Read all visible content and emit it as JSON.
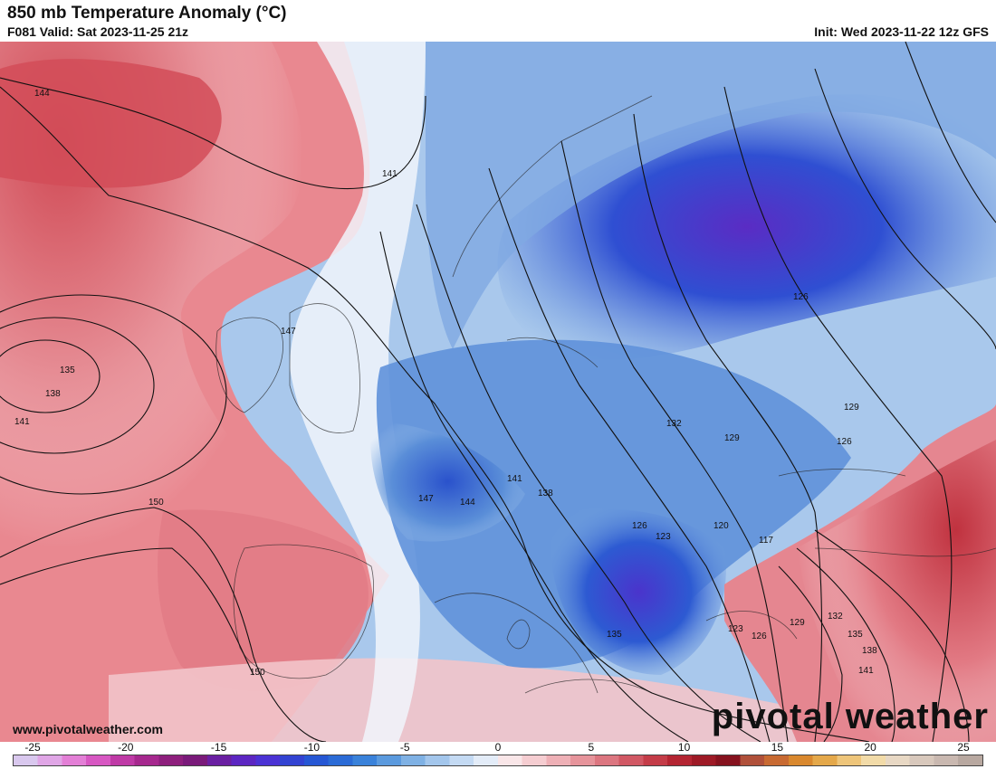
{
  "title": "850 mb Temperature Anomaly (°C)",
  "valid": "F081 Valid: Sat 2023-11-25 21z",
  "init": "Init: Wed 2023-11-22 12z GFS",
  "website": "www.pivotalweather.com",
  "brand": "pivotal weather",
  "colorbar": {
    "ticks": [
      "-25",
      "-20",
      "-15",
      "-10",
      "-5",
      "0",
      "5",
      "10",
      "15",
      "20",
      "25"
    ],
    "colors": [
      "#d9c8ee",
      "#e0a6e6",
      "#e37fd6",
      "#d757c2",
      "#bf3aa6",
      "#a6288e",
      "#8e1f7d",
      "#7a1a7a",
      "#6a1fa2",
      "#5c26c2",
      "#4b32d4",
      "#3343d2",
      "#2657d4",
      "#2b6bd6",
      "#3a82da",
      "#5b9ade",
      "#7fb1e4",
      "#a3c6ec",
      "#c4daf3",
      "#e3ecf8",
      "#f9e6e8",
      "#f5cdd1",
      "#eeb0b6",
      "#e6949b",
      "#dc7680",
      "#d15864",
      "#c43c48",
      "#b42532",
      "#9e1a26",
      "#86121e",
      "#b0503a",
      "#c86a32",
      "#d9882e",
      "#e4a84a",
      "#eec57a",
      "#f2dba8",
      "#e8d8c4",
      "#d8c8bc",
      "#c9b8b0",
      "#b8a8a0"
    ]
  },
  "contour_labels": [
    {
      "text": "144"
    },
    {
      "text": "141"
    },
    {
      "text": "147"
    },
    {
      "text": "135"
    },
    {
      "text": "138"
    },
    {
      "text": "141"
    },
    {
      "text": "150"
    },
    {
      "text": "150"
    },
    {
      "text": "147"
    },
    {
      "text": "144"
    },
    {
      "text": "141"
    },
    {
      "text": "138"
    },
    {
      "text": "126"
    },
    {
      "text": "123"
    },
    {
      "text": "120"
    },
    {
      "text": "117"
    },
    {
      "text": "132"
    },
    {
      "text": "129"
    },
    {
      "text": "126"
    },
    {
      "text": "129"
    },
    {
      "text": "126"
    },
    {
      "text": "135"
    },
    {
      "text": "123"
    },
    {
      "text": "126"
    },
    {
      "text": "129"
    },
    {
      "text": "132"
    },
    {
      "text": "135"
    },
    {
      "text": "138"
    },
    {
      "text": "141"
    }
  ]
}
